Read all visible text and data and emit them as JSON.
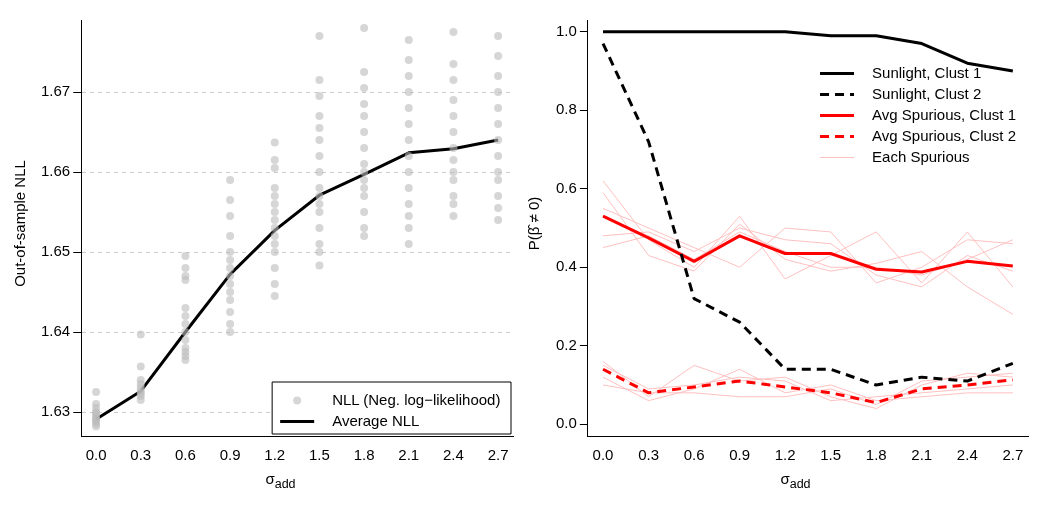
{
  "chart_data": [
    {
      "type": "scatter",
      "ylabel": "Out-of-sample NLL",
      "xlabel": "σ$_{add}$",
      "xlim": [
        -0.1,
        2.8
      ],
      "ylim": [
        1.627,
        1.679
      ],
      "xticks": [
        {
          "value": 0,
          "label": "0.0"
        },
        {
          "value": 0.3,
          "label": "0.3"
        },
        {
          "value": 0.6,
          "label": "0.6"
        },
        {
          "value": 0.9,
          "label": "0.9"
        },
        {
          "value": 1.2,
          "label": "1.2"
        },
        {
          "value": 1.5,
          "label": "1.5"
        },
        {
          "value": 1.8,
          "label": "1.8"
        },
        {
          "value": 2.1,
          "label": "2.1"
        },
        {
          "value": 2.4,
          "label": "2.4"
        },
        {
          "value": 2.7,
          "label": "2.7"
        }
      ],
      "yticks": [
        1.63,
        1.64,
        1.65,
        1.66,
        1.67
      ],
      "grid": "y",
      "legend": "bottom right",
      "series": [
        {
          "name": "NLL (Neg. log−likelihood)",
          "marker": "circle",
          "color": "#bbbbbb",
          "x": [
            0,
            0,
            0,
            0,
            0,
            0,
            0,
            0,
            0,
            0,
            0,
            0.3,
            0.3,
            0.3,
            0.3,
            0.3,
            0.3,
            0.3,
            0.3,
            0.3,
            0.6,
            0.6,
            0.6,
            0.6,
            0.6,
            0.6,
            0.6,
            0.6,
            0.6,
            0.6,
            0.6,
            0.6,
            0.6,
            0.9,
            0.9,
            0.9,
            0.9,
            0.9,
            0.9,
            0.9,
            0.9,
            0.9,
            0.9,
            0.9,
            0.9,
            0.9,
            0.9,
            1.2,
            1.2,
            1.2,
            1.2,
            1.2,
            1.2,
            1.2,
            1.2,
            1.2,
            1.2,
            1.2,
            1.2,
            1.2,
            1.2,
            1.2,
            1.5,
            1.5,
            1.5,
            1.5,
            1.5,
            1.5,
            1.5,
            1.5,
            1.5,
            1.5,
            1.5,
            1.5,
            1.5,
            1.5,
            1.5,
            1.5,
            1.8,
            1.8,
            1.8,
            1.8,
            1.8,
            1.8,
            1.8,
            1.8,
            1.8,
            1.8,
            1.8,
            1.8,
            1.8,
            1.8,
            1.8,
            2.1,
            2.1,
            2.1,
            2.1,
            2.1,
            2.1,
            2.1,
            2.1,
            2.1,
            2.1,
            2.1,
            2.1,
            2.1,
            2.1,
            2.4,
            2.4,
            2.4,
            2.4,
            2.4,
            2.4,
            2.4,
            2.4,
            2.4,
            2.4,
            2.4,
            2.4,
            2.4,
            2.7,
            2.7,
            2.7,
            2.7,
            2.7,
            2.7,
            2.7,
            2.7,
            2.7,
            2.7,
            2.7,
            2.7,
            2.7
          ],
          "values": [
            1.6282,
            1.6285,
            1.6288,
            1.629,
            1.6292,
            1.6295,
            1.6298,
            1.63,
            1.6305,
            1.631,
            1.6325,
            1.6315,
            1.632,
            1.6323,
            1.6326,
            1.633,
            1.6335,
            1.634,
            1.6357,
            1.6397,
            1.6365,
            1.637,
            1.6375,
            1.638,
            1.639,
            1.64,
            1.641,
            1.642,
            1.643,
            1.6465,
            1.647,
            1.648,
            1.6495,
            1.64,
            1.641,
            1.6425,
            1.644,
            1.645,
            1.646,
            1.647,
            1.648,
            1.649,
            1.65,
            1.652,
            1.6545,
            1.6565,
            1.659,
            1.6445,
            1.646,
            1.648,
            1.65,
            1.651,
            1.652,
            1.653,
            1.654,
            1.655,
            1.656,
            1.657,
            1.658,
            1.6605,
            1.6615,
            1.6637,
            1.6483,
            1.65,
            1.651,
            1.653,
            1.655,
            1.656,
            1.657,
            1.658,
            1.66,
            1.662,
            1.664,
            1.6655,
            1.667,
            1.6695,
            1.6715,
            1.677,
            1.652,
            1.653,
            1.655,
            1.657,
            1.658,
            1.659,
            1.66,
            1.661,
            1.663,
            1.665,
            1.667,
            1.6685,
            1.6705,
            1.6725,
            1.678,
            1.651,
            1.653,
            1.6545,
            1.656,
            1.658,
            1.66,
            1.662,
            1.664,
            1.666,
            1.668,
            1.67,
            1.672,
            1.674,
            1.6765,
            1.6545,
            1.656,
            1.657,
            1.659,
            1.66,
            1.6615,
            1.663,
            1.665,
            1.667,
            1.669,
            1.6715,
            1.6735,
            1.6775,
            1.654,
            1.6555,
            1.657,
            1.659,
            1.66,
            1.662,
            1.664,
            1.666,
            1.668,
            1.67,
            1.672,
            1.6745,
            1.677
          ]
        },
        {
          "name": "Average NLL",
          "type": "line",
          "marker": "none",
          "color": "#000000",
          "line_style": "solid",
          "x": [
            0,
            0.3,
            0.6,
            0.9,
            1.2,
            1.5,
            1.8,
            2.1,
            2.4,
            2.7
          ],
          "values": [
            1.6291,
            1.6326,
            1.64,
            1.6472,
            1.6527,
            1.6571,
            1.6597,
            1.6624,
            1.6629,
            1.664
          ]
        }
      ]
    },
    {
      "type": "line",
      "ylabel": "P(β̂ ≠ 0)",
      "xlabel": "σ$_{add}$",
      "xlim": [
        -0.1,
        2.8
      ],
      "ylim": [
        -0.03,
        1.03
      ],
      "xticks": [
        {
          "value": 0,
          "label": "0.0"
        },
        {
          "value": 0.3,
          "label": "0.3"
        },
        {
          "value": 0.6,
          "label": "0.6"
        },
        {
          "value": 0.9,
          "label": "0.9"
        },
        {
          "value": 1.2,
          "label": "1.2"
        },
        {
          "value": 1.5,
          "label": "1.5"
        },
        {
          "value": 1.8,
          "label": "1.8"
        },
        {
          "value": 2.1,
          "label": "2.1"
        },
        {
          "value": 2.4,
          "label": "2.4"
        },
        {
          "value": 2.7,
          "label": "2.7"
        }
      ],
      "yticks": [
        {
          "value": 0,
          "label": "0.0"
        },
        0.2,
        0.4,
        0.6,
        0.8,
        {
          "value": 1,
          "label": "1.0"
        }
      ],
      "legend": "top right",
      "marker": "none",
      "x": [
        0,
        0.3,
        0.6,
        0.9,
        1.2,
        1.5,
        1.8,
        2.1,
        2.4,
        2.7
      ],
      "series": [
        {
          "name": "Sunlight, Clust 1",
          "color": "#000000",
          "line_style": "solid",
          "values": [
            1,
            1,
            1,
            1,
            1,
            0.99,
            0.99,
            0.97,
            0.92,
            0.9
          ]
        },
        {
          "name": "Sunlight, Clust 2",
          "color": "#000000",
          "line_style": "dashed",
          "values": [
            0.97,
            0.72,
            0.32,
            0.26,
            0.14,
            0.14,
            0.1,
            0.12,
            0.11,
            0.155
          ]
        },
        {
          "name": "Avg Spurious, Clust 1",
          "color": "#ff0000",
          "line_style": "solid",
          "values": [
            0.53,
            0.475,
            0.415,
            0.48,
            0.435,
            0.435,
            0.395,
            0.388,
            0.415,
            0.403
          ]
        },
        {
          "name": "Avg Spurious, Clust 2",
          "color": "#ff0000",
          "line_style": "dashed",
          "values": [
            0.14,
            0.08,
            0.095,
            0.11,
            0.095,
            0.08,
            0.055,
            0.09,
            0.1,
            0.113
          ]
        },
        {
          "name": "Each Spurious",
          "color": "#ffc0c0",
          "line_style": "solid",
          "values": [
            0.62,
            0.47,
            0.4,
            0.53,
            0.37,
            0.43,
            0.49,
            0.36,
            0.49,
            0.35
          ]
        },
        {
          "color": "#ffc0c0",
          "line_style": "solid",
          "values": [
            0.59,
            0.43,
            0.39,
            0.51,
            0.42,
            0.39,
            0.41,
            0.44,
            0.35,
            0.28
          ]
        },
        {
          "color": "#ffc0c0",
          "line_style": "solid",
          "values": [
            0.55,
            0.5,
            0.45,
            0.4,
            0.5,
            0.49,
            0.36,
            0.4,
            0.47,
            0.46
          ]
        },
        {
          "color": "#ffc0c0",
          "line_style": "solid",
          "values": [
            0.48,
            0.49,
            0.44,
            0.5,
            0.47,
            0.46,
            0.38,
            0.35,
            0.43,
            0.39
          ]
        },
        {
          "color": "#ffc0c0",
          "line_style": "solid",
          "values": [
            0.45,
            0.48,
            0.42,
            0.49,
            0.44,
            0.4,
            0.4,
            0.38,
            0.42,
            0.47
          ]
        },
        {
          "color": "#ffc0c0",
          "line_style": "solid",
          "values": [
            0.16,
            0.07,
            0.15,
            0.11,
            0.12,
            0.07,
            0.04,
            0.1,
            0.13,
            0.12
          ]
        },
        {
          "color": "#ffc0c0",
          "line_style": "solid",
          "values": [
            0.12,
            0.06,
            0.09,
            0.14,
            0.08,
            0.1,
            0.06,
            0.07,
            0.08,
            0.08
          ]
        },
        {
          "color": "#ffc0c0",
          "line_style": "solid",
          "values": [
            0.1,
            0.08,
            0.08,
            0.07,
            0.07,
            0.09,
            0.05,
            0.11,
            0.12,
            0.13
          ]
        },
        {
          "color": "#ffc0c0",
          "line_style": "solid",
          "values": [
            0.15,
            0.09,
            0.1,
            0.12,
            0.11,
            0.06,
            0.07,
            0.08,
            0.09,
            0.1
          ]
        }
      ]
    }
  ]
}
